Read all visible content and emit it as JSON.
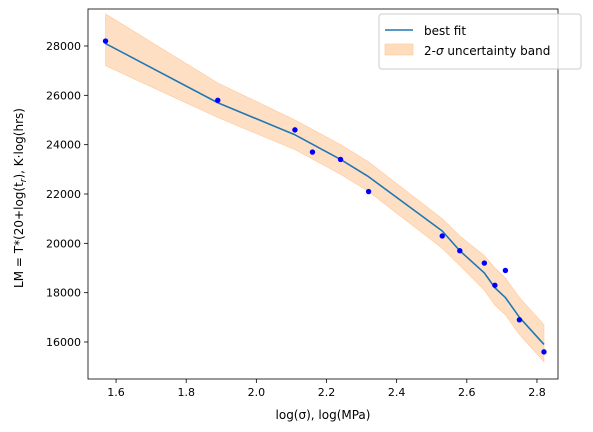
{
  "chart_data": {
    "type": "line",
    "xlabel": "log(σ), log(MPa)",
    "ylabel_parts": [
      "LM = T*(20+log(t",
      "r",
      "), K·log(hrs)"
    ],
    "xlim": [
      1.52,
      2.86
    ],
    "ylim": [
      14500,
      29500
    ],
    "x_ticks": [
      1.6,
      1.8,
      2.0,
      2.2,
      2.4,
      2.6,
      2.8
    ],
    "x_tick_labels": [
      "1.6",
      "1.8",
      "2.0",
      "2.2",
      "2.4",
      "2.6",
      "2.8"
    ],
    "y_ticks": [
      16000,
      18000,
      20000,
      22000,
      24000,
      26000,
      28000
    ],
    "y_tick_labels": [
      "16000",
      "18000",
      "20000",
      "22000",
      "24000",
      "26000",
      "28000"
    ],
    "legend": {
      "position": "top-right",
      "entries": [
        {
          "label": "best fit",
          "kind": "line",
          "color": "#1f77b4"
        },
        {
          "label_parts": [
            "2-",
            "σ",
            " uncertainty band"
          ],
          "kind": "band",
          "color": "#ffdcbc"
        }
      ]
    },
    "series": [
      {
        "name": "best fit",
        "kind": "line",
        "color": "#1f77b4",
        "x": [
          1.57,
          1.89,
          2.11,
          2.24,
          2.32,
          2.53,
          2.58,
          2.65,
          2.68,
          2.71,
          2.75,
          2.82
        ],
        "y": [
          28100,
          25700,
          24400,
          23400,
          22700,
          20500,
          19700,
          18800,
          18200,
          17800,
          17000,
          15900
        ]
      },
      {
        "kind": "band",
        "color": "#ffdcbc",
        "x": [
          1.57,
          1.89,
          2.11,
          2.24,
          2.32,
          2.53,
          2.58,
          2.65,
          2.68,
          2.71,
          2.75,
          2.82
        ],
        "upper": [
          29300,
          26500,
          25000,
          24000,
          23300,
          21000,
          20300,
          19500,
          19000,
          18600,
          17800,
          16700
        ],
        "lower": [
          27200,
          25100,
          23800,
          22800,
          22100,
          19800,
          19100,
          18100,
          17500,
          17100,
          16300,
          15200
        ]
      },
      {
        "kind": "scatter",
        "color": "#0000ff",
        "x": [
          1.57,
          1.89,
          2.11,
          2.16,
          2.24,
          2.32,
          2.53,
          2.58,
          2.65,
          2.68,
          2.71,
          2.75,
          2.82
        ],
        "y": [
          28200,
          25800,
          24600,
          23700,
          23400,
          22100,
          20300,
          19700,
          19200,
          18300,
          18900,
          16900,
          15600
        ]
      }
    ]
  }
}
